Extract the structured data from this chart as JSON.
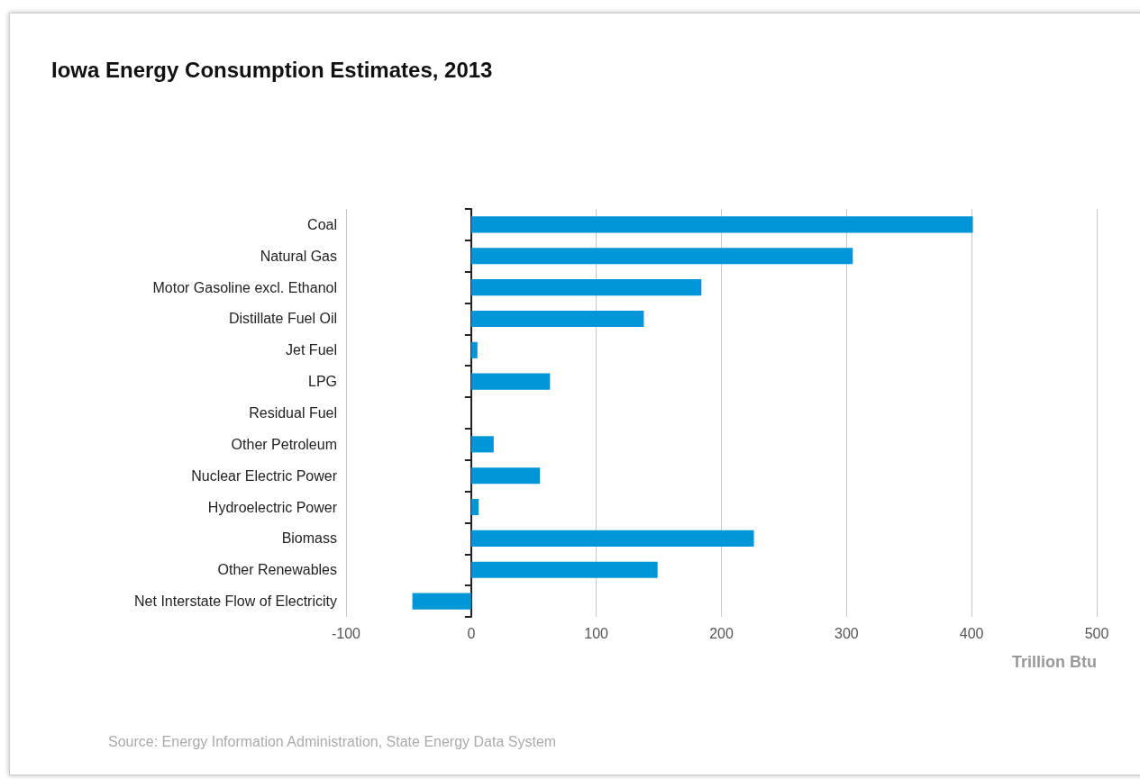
{
  "chart_data": {
    "type": "bar",
    "orientation": "horizontal",
    "title": "Iowa Energy Consumption Estimates, 2013",
    "categories": [
      "Coal",
      "Natural Gas",
      "Motor Gasoline excl. Ethanol",
      "Distillate Fuel Oil",
      "Jet Fuel",
      "LPG",
      "Residual Fuel",
      "Other Petroleum",
      "Nuclear Electric Power",
      "Hydroelectric Power",
      "Biomass",
      "Other Renewables",
      "Net Interstate Flow of Electricity"
    ],
    "values": [
      401,
      305,
      184,
      138,
      5,
      63,
      0,
      18,
      55,
      6,
      226,
      149,
      -47
    ],
    "color": "#0096d7",
    "xlim": [
      -100,
      500
    ],
    "xticks": [
      -100,
      0,
      100,
      200,
      300,
      400,
      500
    ],
    "xlabel": "Trillion Btu",
    "grid": "x",
    "annotations": [
      "Source: Energy Information Administration, State Energy Data System"
    ]
  }
}
